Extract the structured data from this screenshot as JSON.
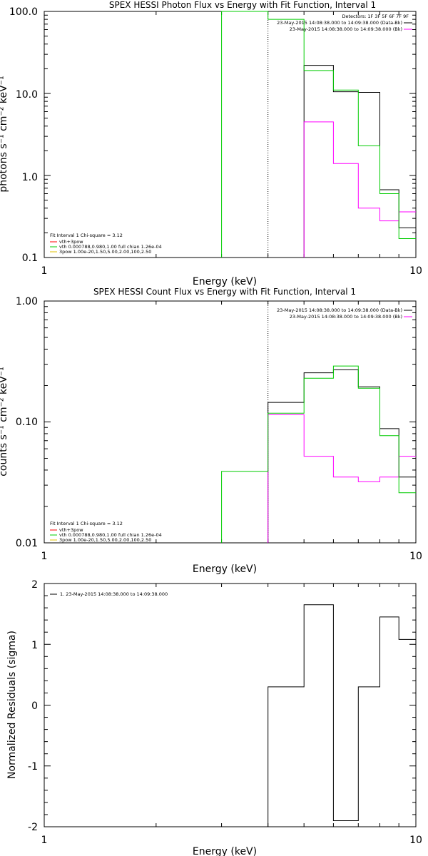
{
  "panel1": {
    "title": "SPEX HESSI Photon Flux vs Energy with Fit Function, Interval 1",
    "xlabel": "Energy (keV)",
    "ylabel": "photons s⁻¹ cm⁻² keV⁻¹",
    "x_ticks": [
      "1",
      "10"
    ],
    "y_ticks": [
      "0.1",
      "1.0",
      "10.0",
      "100.0"
    ],
    "legend_top": [
      "Detectors: 1F 3F 5F 6F 7F 9F",
      "23-May-2015 14:08:38.000 to 14:09:38.000 (Data-Bk)",
      "23-May-2015 14:08:38.000 to 14:09:38.000 (Bk)"
    ],
    "legend_bottom": [
      "Fit Interval 1   Chi-square = 3.12",
      "vth+3pow",
      "vth 0.000788,0.980,1.00  full chian 1.26e-04",
      "3pow 1.00e-20,1.50,5.00,2.00,100,2.50"
    ]
  },
  "panel2": {
    "title": "SPEX HESSI Count Flux vs Energy with Fit Function, Interval 1",
    "xlabel": "Energy (keV)",
    "ylabel": "counts s⁻¹ cm⁻² keV⁻¹",
    "x_ticks": [
      "1",
      "10"
    ],
    "y_ticks": [
      "0.01",
      "0.10",
      "1.00"
    ],
    "legend_top": [
      "23-May-2015 14:08:38.000 to 14:09:38.000 (Data-Bk)",
      "23-May-2015 14:08:38.000 to 14:09:38.000 (Bk)"
    ],
    "legend_bottom": [
      "Fit Interval 1   Chi-square = 3.12",
      "vth+3pow",
      "vth 0.000788,0.980,1.00  full chian 1.26e-04",
      "3pow 1.00e-20,1.50,5.00,2.00,100,2.50"
    ]
  },
  "panel3": {
    "xlabel": "Energy (keV)",
    "ylabel": "Normalized Residuals (sigma)",
    "x_ticks": [
      "1",
      "10"
    ],
    "y_ticks": [
      "-2",
      "-1",
      "0",
      "1",
      "2"
    ],
    "legend": "1. 23-May-2015 14:08:38.000 to 14:09:38.000"
  },
  "colors": {
    "data": "#000000",
    "background": "#ff00ff",
    "model": "#00cc00",
    "vth": "#ff0000",
    "pow": "#e0c000"
  },
  "chart_data": [
    {
      "type": "line",
      "title": "SPEX HESSI Photon Flux vs Energy with Fit Function, Interval 1",
      "xlabel": "Energy (keV)",
      "ylabel": "photons s⁻¹ cm⁻² keV⁻¹",
      "xscale": "log",
      "yscale": "log",
      "xlim": [
        1,
        10
      ],
      "ylim": [
        0.1,
        100
      ],
      "series": [
        {
          "name": "23-May-2015 14:08:38.000 to 14:09:38.000 (Data-Bk)",
          "color": "#000000",
          "edges": [
            5,
            6,
            7,
            8,
            9,
            10
          ],
          "values": [
            22,
            10.5,
            10.3,
            0.67,
            0.23
          ]
        },
        {
          "name": "23-May-2015 14:08:38.000 to 14:09:38.000 (Bk)",
          "color": "#ff00ff",
          "edges": [
            5,
            6,
            7,
            8,
            9,
            10
          ],
          "values": [
            4.5,
            1.4,
            0.4,
            0.28,
            0.36
          ]
        },
        {
          "name": "vth+3pow",
          "color": "#00cc00",
          "edges": [
            3,
            4,
            5,
            6,
            7,
            8,
            9,
            10
          ],
          "values": [
            100,
            80,
            19,
            11,
            2.3,
            0.6,
            0.17
          ]
        }
      ],
      "markers": [
        {
          "x": 4,
          "style": "dotted"
        }
      ],
      "legend": "top-right"
    },
    {
      "type": "line",
      "title": "SPEX HESSI Count Flux vs Energy with Fit Function, Interval 1",
      "xlabel": "Energy (keV)",
      "ylabel": "counts s⁻¹ cm⁻² keV⁻¹",
      "xscale": "log",
      "yscale": "log",
      "xlim": [
        1,
        10
      ],
      "ylim": [
        0.01,
        1.0
      ],
      "series": [
        {
          "name": "23-May-2015 14:08:38.000 to 14:09:38.000 (Data-Bk)",
          "color": "#000000",
          "edges": [
            4,
            5,
            6,
            7,
            8,
            9,
            10
          ],
          "values": [
            0.145,
            0.255,
            0.27,
            0.195,
            0.088,
            0.035
          ]
        },
        {
          "name": "23-May-2015 14:08:38.000 to 14:09:38.000 (Bk)",
          "color": "#ff00ff",
          "edges": [
            4,
            5,
            6,
            7,
            8,
            9,
            10
          ],
          "values": [
            0.115,
            0.052,
            0.035,
            0.032,
            0.035,
            0.052
          ]
        },
        {
          "name": "vth+3pow",
          "color": "#00cc00",
          "edges": [
            3,
            4,
            5,
            6,
            7,
            8,
            9,
            10
          ],
          "values": [
            0.039,
            0.118,
            0.23,
            0.29,
            0.19,
            0.077,
            0.026
          ]
        }
      ],
      "markers": [
        {
          "x": 4,
          "style": "dotted"
        }
      ],
      "legend": "top-right"
    },
    {
      "type": "line",
      "xlabel": "Energy (keV)",
      "ylabel": "Normalized Residuals (sigma)",
      "xscale": "log",
      "xlim": [
        1,
        10
      ],
      "ylim": [
        -2,
        2
      ],
      "series": [
        {
          "name": "1. 23-May-2015 14:08:38.000 to 14:09:38.000",
          "color": "#000000",
          "edges": [
            4,
            5,
            6,
            7,
            8,
            9,
            10
          ],
          "values": [
            0.3,
            1.65,
            -1.9,
            0.3,
            1.45,
            1.08
          ]
        }
      ],
      "legend": "top-left"
    }
  ]
}
